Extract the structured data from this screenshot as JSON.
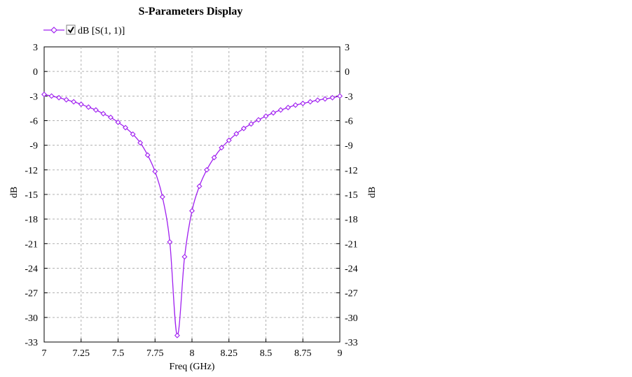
{
  "chart_data": {
    "type": "line",
    "title": "S-Parameters Display",
    "xlabel": "Freq (GHz)",
    "ylabel": "dB",
    "ylabel_right": "dB",
    "xlim": [
      7,
      9
    ],
    "ylim": [
      -33,
      3
    ],
    "x_ticks": [
      7,
      7.25,
      7.5,
      7.75,
      8,
      8.25,
      8.5,
      8.75,
      9
    ],
    "x_tick_labels": [
      "7",
      "7.25",
      "7.5",
      "7.75",
      "8",
      "8.25",
      "8.5",
      "8.75",
      "9"
    ],
    "y_ticks": [
      3,
      0,
      -3,
      -6,
      -9,
      -12,
      -15,
      -18,
      -21,
      -24,
      -27,
      -30,
      -33
    ],
    "y_tick_labels": [
      "3",
      "0",
      "-3",
      "-6",
      "-9",
      "-12",
      "-15",
      "-18",
      "-21",
      "-24",
      "-27",
      "-30",
      "-33"
    ],
    "grid": true,
    "legend_position": "top-left",
    "series": [
      {
        "name": "dB [S(1, 1)]",
        "color": "#a020f0",
        "marker": "diamond",
        "legend_checked": true,
        "x": [
          7.0,
          7.05,
          7.1,
          7.15,
          7.2,
          7.25,
          7.3,
          7.35,
          7.4,
          7.45,
          7.5,
          7.55,
          7.6,
          7.65,
          7.7,
          7.75,
          7.8,
          7.85,
          7.9,
          7.95,
          8.0,
          8.05,
          8.1,
          8.15,
          8.2,
          8.25,
          8.3,
          8.35,
          8.4,
          8.45,
          8.5,
          8.55,
          8.6,
          8.65,
          8.7,
          8.75,
          8.8,
          8.85,
          8.9,
          8.95,
          9.0
        ],
        "y": [
          -2.8,
          -3.0,
          -3.2,
          -3.45,
          -3.7,
          -4.0,
          -4.35,
          -4.7,
          -5.15,
          -5.6,
          -6.2,
          -6.85,
          -7.65,
          -8.7,
          -10.2,
          -12.2,
          -15.3,
          -20.8,
          -32.2,
          -22.6,
          -17.0,
          -14.0,
          -12.0,
          -10.5,
          -9.3,
          -8.4,
          -7.6,
          -6.95,
          -6.4,
          -5.9,
          -5.45,
          -5.05,
          -4.7,
          -4.4,
          -4.1,
          -3.9,
          -3.7,
          -3.5,
          -3.35,
          -3.2,
          -3.0
        ]
      }
    ]
  }
}
